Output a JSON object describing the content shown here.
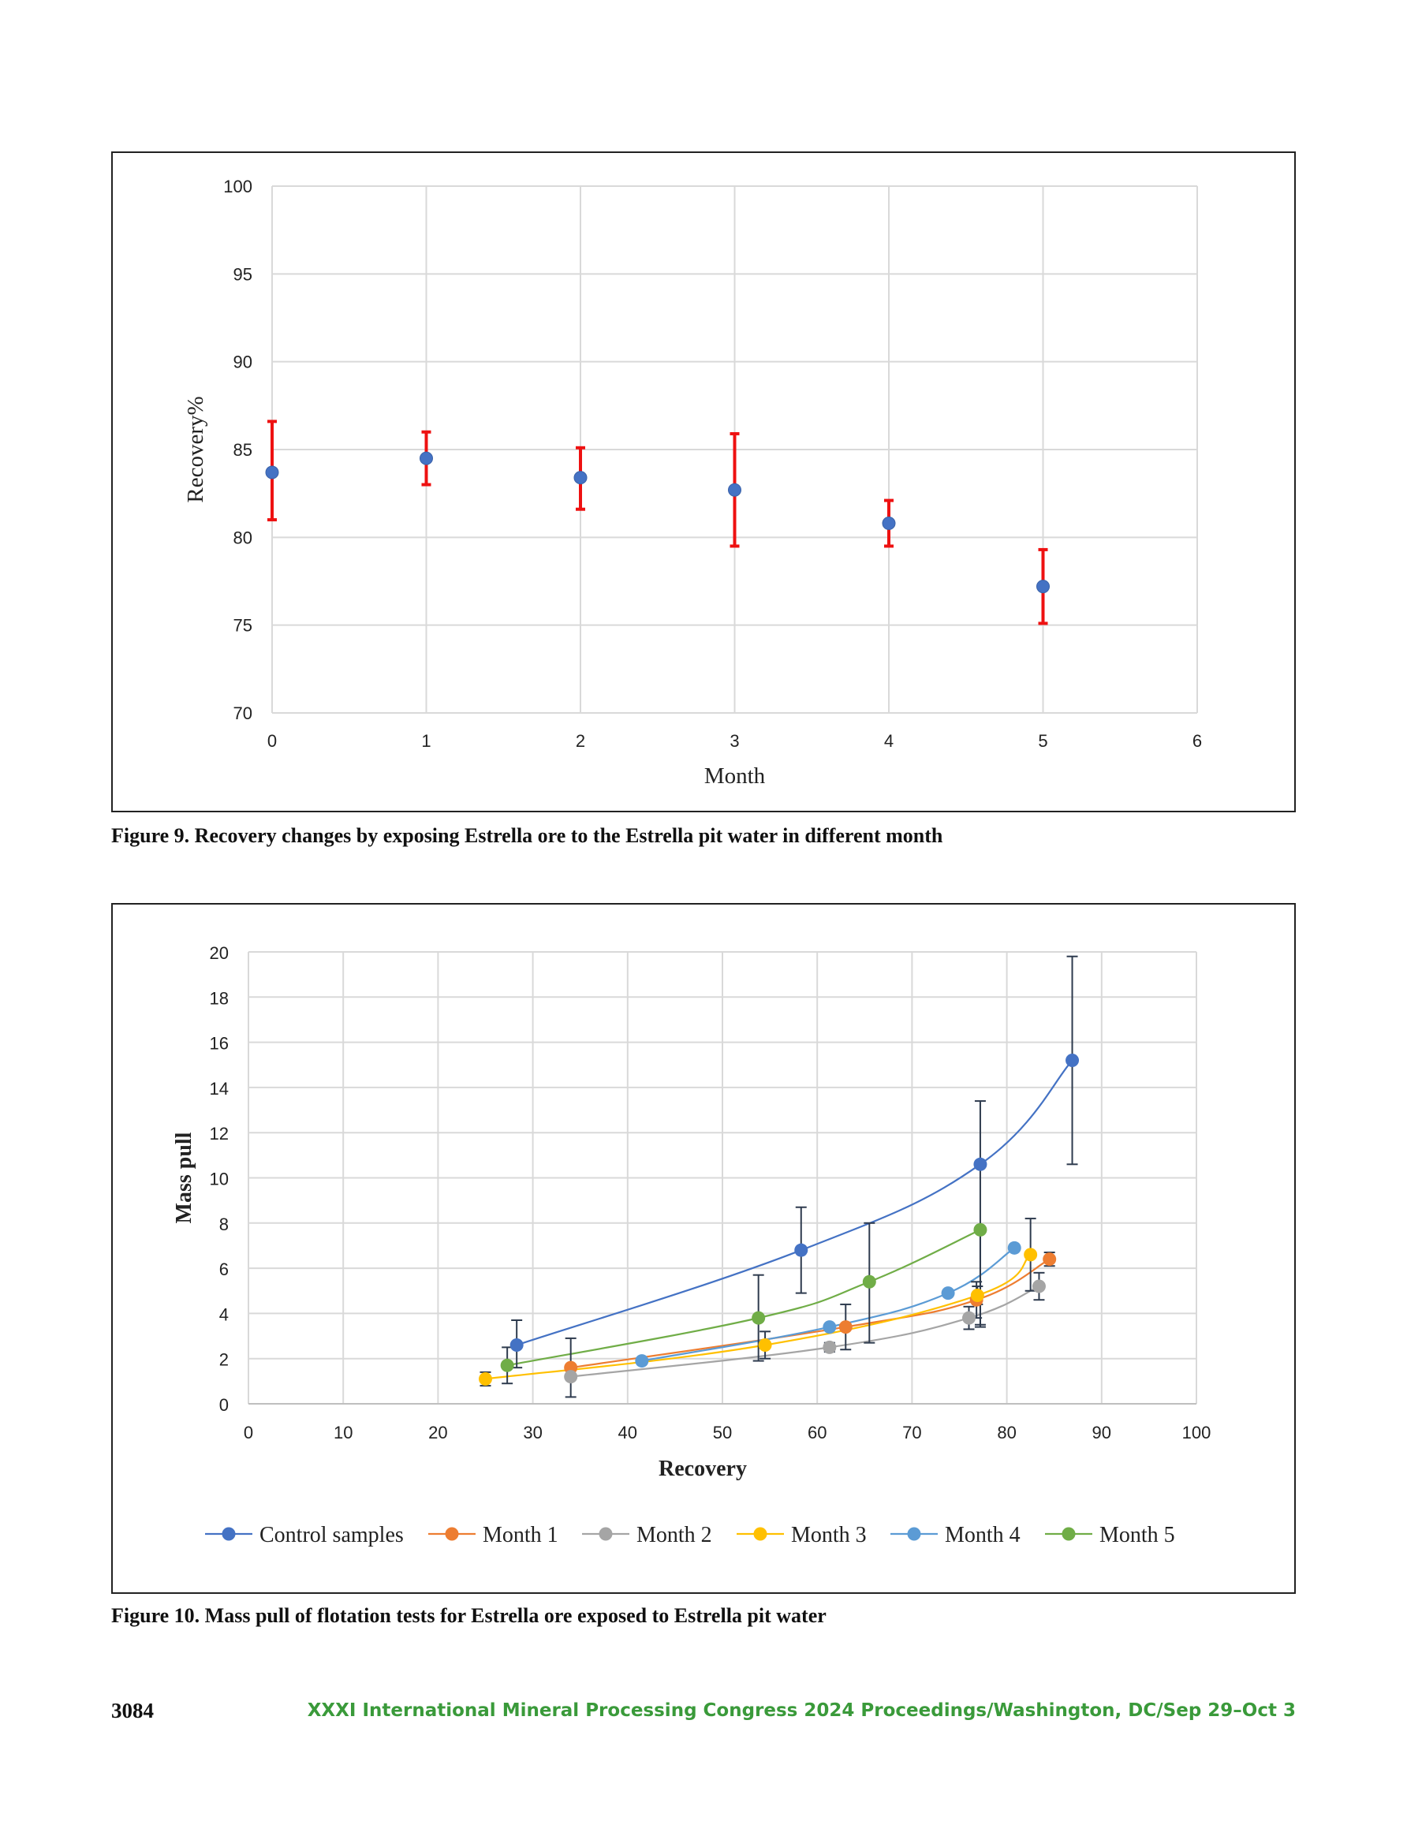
{
  "figure9": {
    "caption": "Figure 9. Recovery changes by exposing Estrella ore to the Estrella pit water in different month"
  },
  "figure10": {
    "caption": "Figure 10. Mass pull of flotation tests for Estrella ore exposed to Estrella pit water"
  },
  "footer": {
    "page_number": "3084",
    "conference": "XXXI International Mineral Processing Congress 2024 Proceedings/Washington, DC/Sep 29–Oct 3"
  },
  "chart_data": [
    {
      "type": "scatter",
      "xlabel": "Month",
      "ylabel": "Recovery%",
      "xlim": [
        0,
        6
      ],
      "ylim": [
        70,
        100
      ],
      "xticks": [
        "0",
        "1",
        "2",
        "3",
        "4",
        "5",
        "6"
      ],
      "yticks": [
        "70",
        "75",
        "80",
        "85",
        "90",
        "95",
        "100"
      ],
      "grid": true,
      "point_color": "#4472c4",
      "error_color": "#ee1111",
      "series": [
        {
          "x": [
            0,
            1,
            2,
            3,
            4,
            5
          ],
          "y": [
            83.7,
            84.5,
            83.4,
            82.7,
            80.8,
            77.2
          ],
          "err_low": [
            81.0,
            83.0,
            81.6,
            79.5,
            79.5,
            75.1
          ],
          "err_high": [
            86.6,
            86.0,
            85.1,
            85.9,
            82.1,
            79.3
          ]
        }
      ]
    },
    {
      "type": "line",
      "xlabel": "Recovery",
      "ylabel": "Mass pull",
      "xlim": [
        0,
        100
      ],
      "ylim": [
        0,
        20
      ],
      "xticks": [
        "0",
        "10",
        "20",
        "30",
        "40",
        "50",
        "60",
        "70",
        "80",
        "90",
        "100"
      ],
      "yticks": [
        "0",
        "2",
        "4",
        "6",
        "8",
        "10",
        "12",
        "14",
        "16",
        "18",
        "20"
      ],
      "grid": true,
      "legend_position": "bottom",
      "series": [
        {
          "name": "Control samples",
          "color": "#4472c4",
          "x": [
            28.3,
            58.3,
            77.2,
            86.9
          ],
          "y": [
            2.6,
            6.8,
            10.6,
            15.2
          ],
          "err_low": [
            1.6,
            4.9,
            3.4,
            10.6
          ],
          "err_high": [
            3.7,
            8.7,
            13.4,
            19.8
          ]
        },
        {
          "name": "Month 1",
          "color": "#ed7d31",
          "x": [
            34.0,
            63.0,
            76.8,
            84.5
          ],
          "y": [
            1.6,
            3.4,
            4.6,
            6.4
          ],
          "err_low": [
            1.6,
            2.4,
            3.8,
            6.1
          ],
          "err_high": [
            1.6,
            4.4,
            5.4,
            6.7
          ]
        },
        {
          "name": "Month 2",
          "color": "#a5a5a5",
          "x": [
            34.0,
            61.3,
            76.0,
            83.4
          ],
          "y": [
            1.2,
            2.5,
            3.8,
            5.2
          ],
          "err_low": [
            0.3,
            2.3,
            3.3,
            4.6
          ],
          "err_high": [
            2.9,
            2.7,
            4.3,
            5.8
          ]
        },
        {
          "name": "Month 3",
          "color": "#ffc000",
          "x": [
            25.0,
            54.5,
            76.9,
            82.5
          ],
          "y": [
            1.1,
            2.6,
            4.8,
            6.6
          ],
          "err_low": [
            0.8,
            2.0,
            4.4,
            5.0
          ],
          "err_high": [
            1.4,
            3.2,
            5.2,
            8.2
          ]
        },
        {
          "name": "Month 4",
          "color": "#5b9bd5",
          "x": [
            41.5,
            61.3,
            73.8,
            80.8
          ],
          "y": [
            1.9,
            3.4,
            4.9,
            6.9
          ],
          "err_low": [
            1.9,
            3.3,
            4.8,
            6.9
          ],
          "err_high": [
            1.9,
            3.5,
            5.0,
            6.9
          ]
        },
        {
          "name": "Month 5",
          "color": "#70ad47",
          "x": [
            27.3,
            53.8,
            65.5,
            77.2
          ],
          "y": [
            1.7,
            3.8,
            5.4,
            7.7
          ],
          "err_low": [
            0.9,
            1.9,
            2.7,
            3.5
          ],
          "err_high": [
            2.5,
            5.7,
            8.0,
            7.7
          ]
        }
      ]
    }
  ]
}
